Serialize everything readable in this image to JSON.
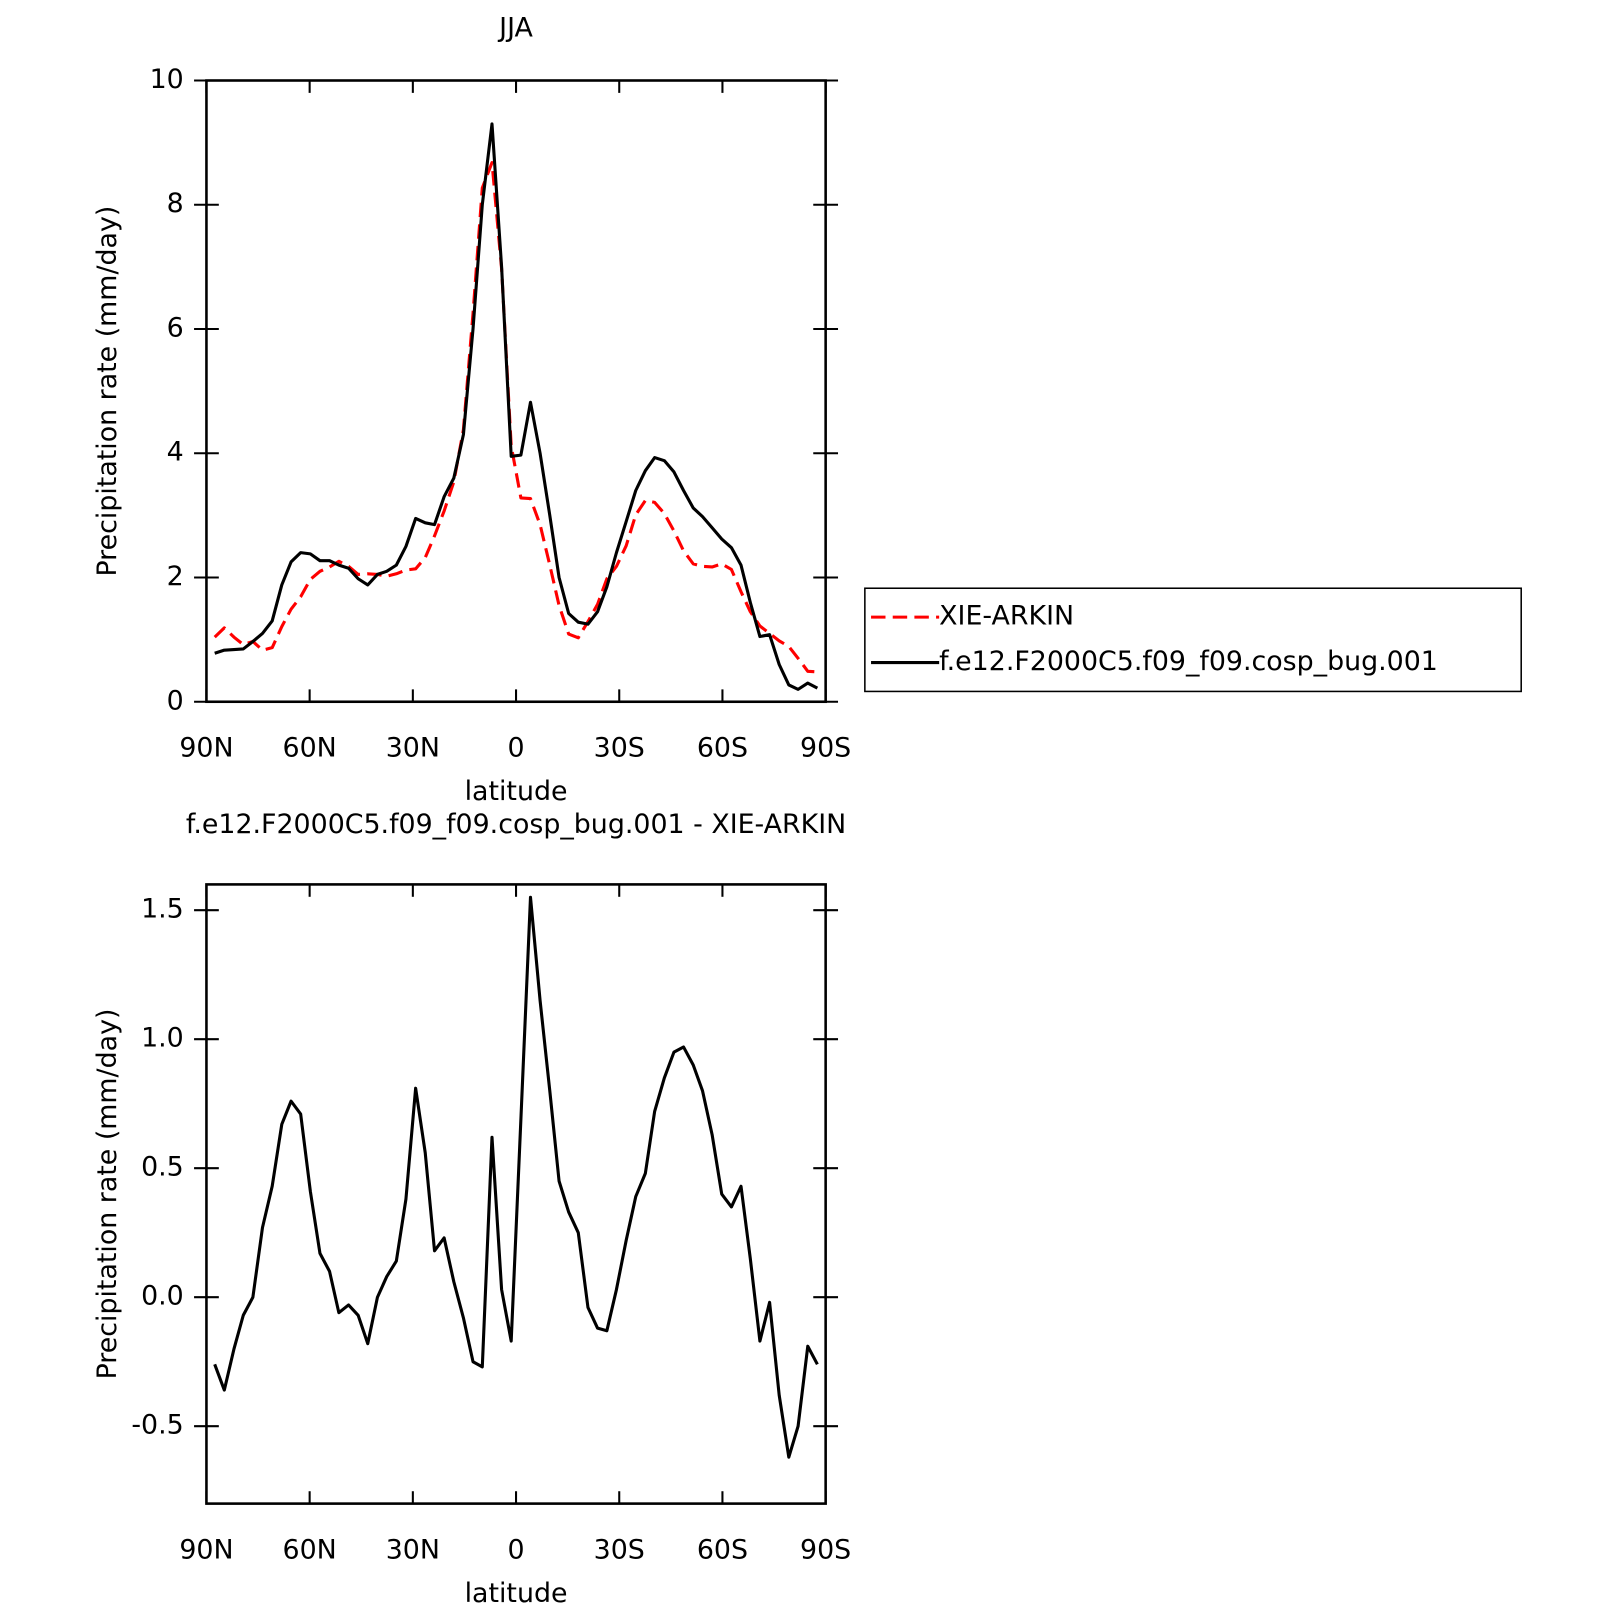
{
  "chart_data": [
    {
      "type": "line",
      "title": "JJA",
      "xlabel": "latitude",
      "ylabel": "Precipitation rate (mm/day)",
      "x": [
        87.6,
        84.8,
        82.0,
        79.3,
        76.5,
        73.7,
        70.9,
        68.1,
        65.4,
        62.6,
        59.8,
        57.0,
        54.2,
        51.5,
        48.7,
        45.9,
        43.1,
        40.3,
        37.6,
        34.8,
        32.0,
        29.2,
        26.4,
        23.7,
        20.9,
        18.1,
        15.3,
        12.5,
        9.8,
        7.0,
        4.2,
        1.4,
        -1.4,
        -4.2,
        -7.0,
        -9.8,
        -12.5,
        -15.3,
        -18.1,
        -20.9,
        -23.7,
        -26.4,
        -29.2,
        -32.0,
        -34.8,
        -37.6,
        -40.3,
        -43.1,
        -45.9,
        -48.7,
        -51.5,
        -54.2,
        -57.0,
        -59.8,
        -62.6,
        -65.4,
        -68.1,
        -70.9,
        -73.7,
        -76.5,
        -79.3,
        -82.0,
        -84.8,
        -87.6
      ],
      "xlim": [
        90,
        -90
      ],
      "xticks": [
        {
          "value": 90,
          "label": "90N"
        },
        {
          "value": 60,
          "label": "60N"
        },
        {
          "value": 30,
          "label": "30N"
        },
        0,
        {
          "value": -30,
          "label": "30S"
        },
        {
          "value": -60,
          "label": "60S"
        },
        {
          "value": -90,
          "label": "90S"
        }
      ],
      "ylim": [
        0,
        10
      ],
      "yticks": [
        0,
        2,
        4,
        6,
        8,
        10
      ],
      "legend": "right",
      "series": [
        {
          "name": "XIE-ARKIN",
          "color": "#ff0000",
          "dashed": true,
          "values": [
            1.04,
            1.19,
            1.04,
            0.92,
            0.97,
            0.83,
            0.87,
            1.21,
            1.49,
            1.69,
            1.97,
            2.1,
            2.17,
            2.26,
            2.18,
            2.05,
            2.06,
            2.05,
            2.02,
            2.06,
            2.12,
            2.14,
            2.32,
            2.67,
            3.07,
            3.54,
            4.38,
            6.25,
            8.27,
            8.68,
            6.97,
            4.12,
            3.28,
            3.27,
            2.85,
            2.2,
            1.55,
            1.09,
            1.03,
            1.29,
            1.57,
            1.98,
            2.18,
            2.51,
            3.01,
            3.24,
            3.21,
            3.03,
            2.75,
            2.43,
            2.22,
            2.18,
            2.17,
            2.22,
            2.13,
            1.77,
            1.45,
            1.22,
            1.1,
            0.98,
            0.89,
            0.7,
            0.49,
            0.48
          ]
        },
        {
          "name": "f.e12.F2000C5.f09_f09.cosp_bug.001",
          "color": "#000000",
          "dashed": false,
          "values": [
            0.78,
            0.83,
            0.84,
            0.85,
            0.97,
            1.1,
            1.3,
            1.88,
            2.25,
            2.4,
            2.38,
            2.27,
            2.27,
            2.2,
            2.15,
            1.98,
            1.88,
            2.05,
            2.1,
            2.2,
            2.5,
            2.95,
            2.88,
            2.85,
            3.3,
            3.6,
            4.3,
            6.0,
            8.0,
            9.3,
            7.0,
            3.95,
            3.97,
            4.82,
            4.0,
            3.0,
            2.0,
            1.42,
            1.28,
            1.25,
            1.45,
            1.85,
            2.4,
            2.9,
            3.4,
            3.72,
            3.93,
            3.88,
            3.7,
            3.4,
            3.12,
            2.98,
            2.8,
            2.62,
            2.48,
            2.2,
            1.6,
            1.05,
            1.08,
            0.6,
            0.27,
            0.2,
            0.3,
            0.22
          ]
        }
      ]
    },
    {
      "type": "line",
      "title": "f.e12.F2000C5.f09_f09.cosp_bug.001 - XIE-ARKIN",
      "xlabel": "latitude",
      "ylabel": "Precipitation rate (mm/day)",
      "x": [
        87.6,
        84.8,
        82.0,
        79.3,
        76.5,
        73.7,
        70.9,
        68.1,
        65.4,
        62.6,
        59.8,
        57.0,
        54.2,
        51.5,
        48.7,
        45.9,
        43.1,
        40.3,
        37.6,
        34.8,
        32.0,
        29.2,
        26.4,
        23.7,
        20.9,
        18.1,
        15.3,
        12.5,
        9.8,
        7.0,
        4.2,
        1.4,
        -1.4,
        -4.2,
        -7.0,
        -9.8,
        -12.5,
        -15.3,
        -18.1,
        -20.9,
        -23.7,
        -26.4,
        -29.2,
        -32.0,
        -34.8,
        -37.6,
        -40.3,
        -43.1,
        -45.9,
        -48.7,
        -51.5,
        -54.2,
        -57.0,
        -59.8,
        -62.6,
        -65.4,
        -68.1,
        -70.9,
        -73.7,
        -76.5,
        -79.3,
        -82.0,
        -84.8,
        -87.6
      ],
      "xlim": [
        90,
        -90
      ],
      "xticks": [
        {
          "value": 90,
          "label": "90N"
        },
        {
          "value": 60,
          "label": "60N"
        },
        {
          "value": 30,
          "label": "30N"
        },
        0,
        {
          "value": -30,
          "label": "30S"
        },
        {
          "value": -60,
          "label": "60S"
        },
        {
          "value": -90,
          "label": "90S"
        }
      ],
      "ylim": [
        -0.8,
        1.6
      ],
      "yticks": [
        {
          "value": -0.5,
          "label": "-0.5"
        },
        {
          "value": 0,
          "label": "0.0"
        },
        {
          "value": 0.5,
          "label": "0.5"
        },
        {
          "value": 1,
          "label": "1.0"
        },
        {
          "value": 1.5,
          "label": "1.5"
        }
      ],
      "series": [
        {
          "color": "#000000",
          "dashed": false,
          "values": [
            -0.26,
            -0.36,
            -0.2,
            -0.07,
            0.0,
            0.27,
            0.43,
            0.67,
            0.76,
            0.71,
            0.41,
            0.17,
            0.1,
            -0.06,
            -0.03,
            -0.07,
            -0.18,
            0.0,
            0.08,
            0.14,
            0.38,
            0.81,
            0.56,
            0.18,
            0.23,
            0.06,
            -0.08,
            -0.25,
            -0.27,
            0.62,
            0.03,
            -0.17,
            0.69,
            1.55,
            1.15,
            0.8,
            0.45,
            0.33,
            0.25,
            -0.04,
            -0.12,
            -0.13,
            0.03,
            0.22,
            0.39,
            0.48,
            0.72,
            0.85,
            0.95,
            0.97,
            0.9,
            0.8,
            0.63,
            0.4,
            0.35,
            0.43,
            0.15,
            -0.17,
            -0.02,
            -0.38,
            -0.62,
            -0.5,
            -0.19,
            -0.26
          ]
        }
      ]
    }
  ]
}
